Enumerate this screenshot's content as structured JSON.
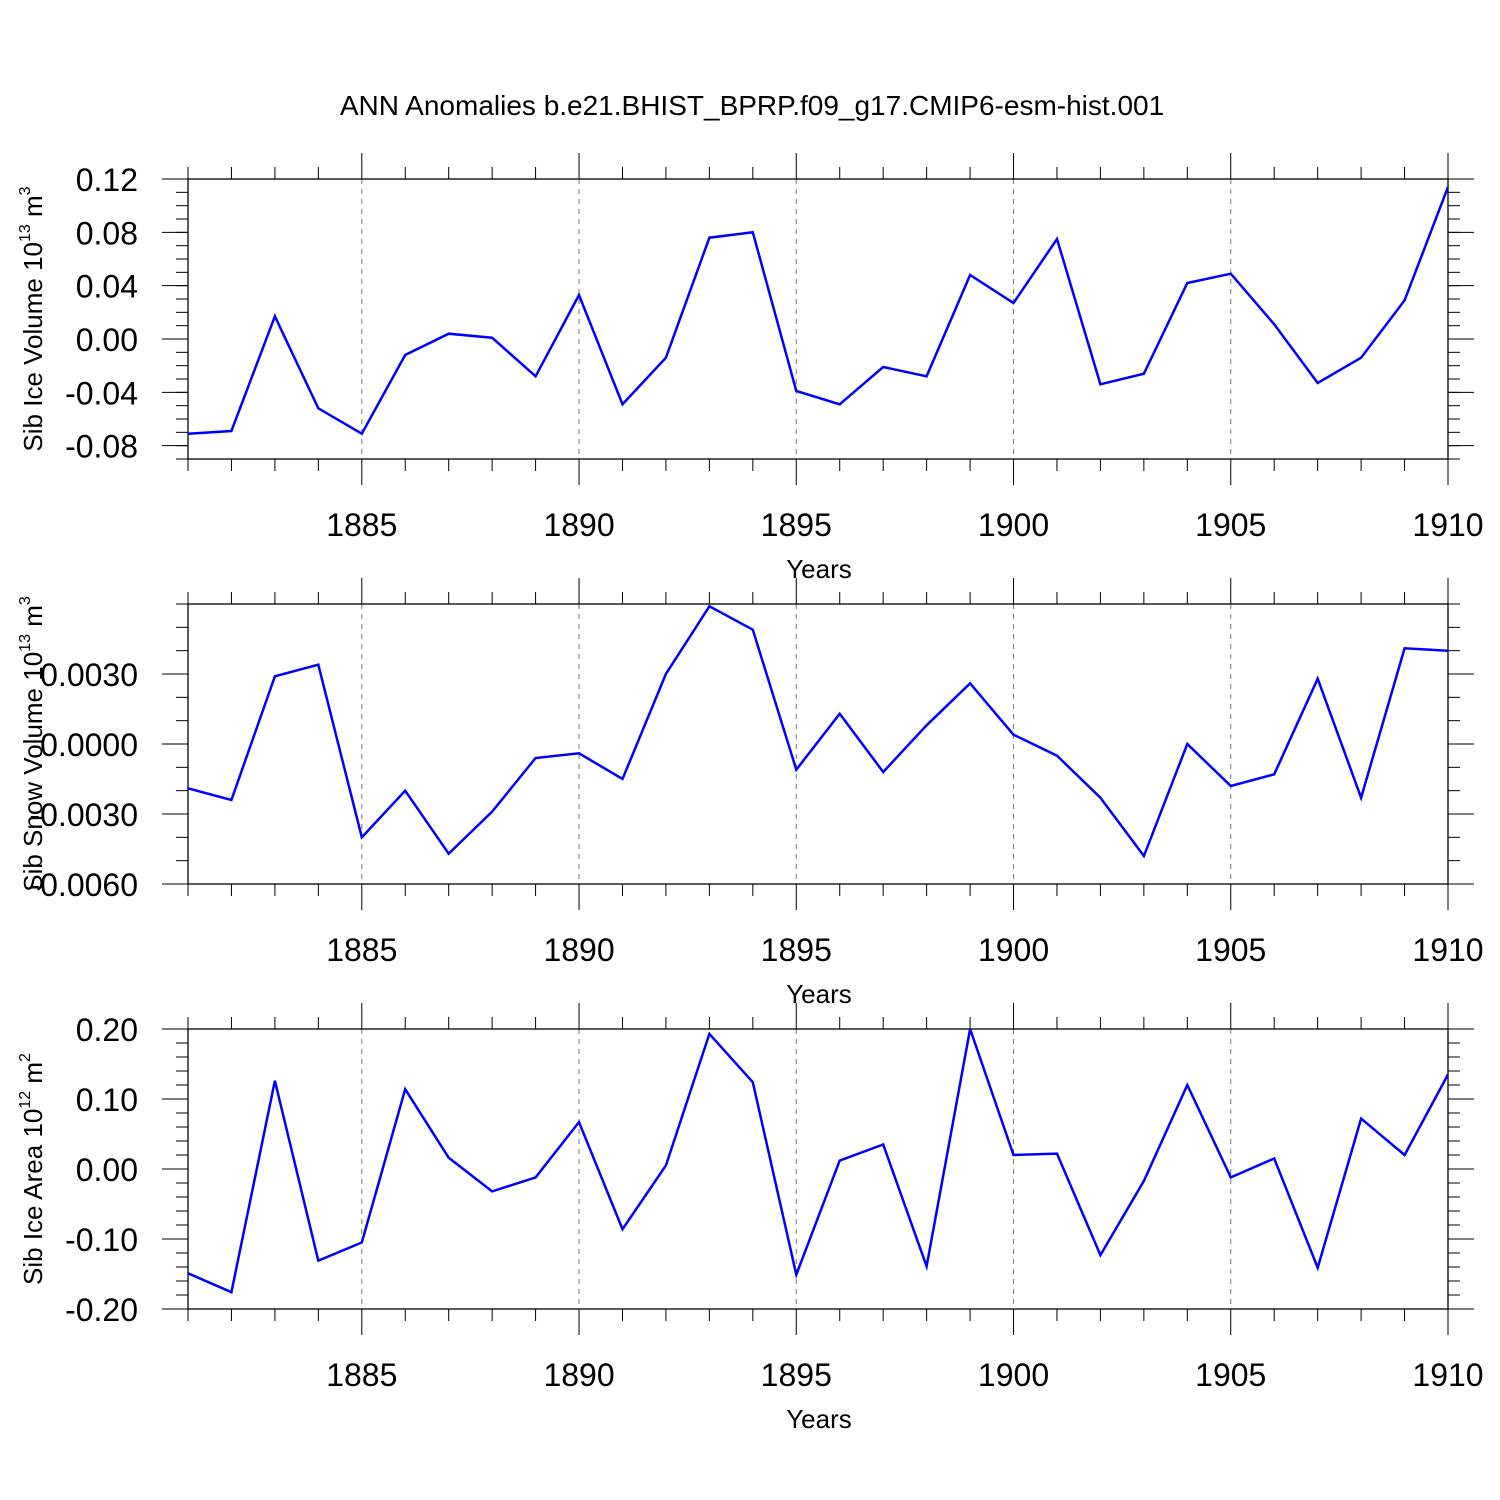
{
  "title": "ANN Anomalies b.e21.BHIST_BPRP.f09_g17.CMIP6-esm-hist.001",
  "line_color": "#0000ff",
  "chart_data": [
    {
      "type": "line",
      "title": "ANN Anomalies b.e21.BHIST_BPRP.f09_g17.CMIP6-esm-hist.001",
      "xlabel": "Years",
      "ylabel_base": "Sib Ice Volume 10",
      "ylabel_exp": "13",
      "ylabel_unit": " m",
      "ylabel_unit_exp": "3",
      "xlim": [
        1881,
        1910
      ],
      "ylim": [
        -0.09,
        0.12
      ],
      "xticks": [
        1885,
        1890,
        1895,
        1900,
        1905,
        1910
      ],
      "xtick_labels": [
        "1885",
        "1890",
        "1895",
        "1900",
        "1905",
        "1910"
      ],
      "yticks": [
        -0.08,
        -0.04,
        0.0,
        0.04,
        0.08,
        0.12
      ],
      "ytick_labels": [
        "-0.08",
        "-0.04",
        "0.00",
        "0.04",
        "0.08",
        "0.12"
      ],
      "yminor_step": 0.01,
      "grid": "vertical dashed at major x ticks",
      "x": [
        1881,
        1882,
        1883,
        1884,
        1885,
        1886,
        1887,
        1888,
        1889,
        1890,
        1891,
        1892,
        1893,
        1894,
        1895,
        1896,
        1897,
        1898,
        1899,
        1900,
        1901,
        1902,
        1903,
        1904,
        1905,
        1906,
        1907,
        1908,
        1909,
        1910
      ],
      "values": [
        -0.071,
        -0.069,
        0.017,
        -0.052,
        -0.071,
        -0.012,
        0.004,
        0.001,
        -0.028,
        0.033,
        -0.049,
        -0.014,
        0.076,
        0.08,
        -0.039,
        -0.049,
        -0.021,
        -0.028,
        0.048,
        0.027,
        0.075,
        -0.034,
        -0.026,
        0.042,
        0.049,
        0.011,
        -0.033,
        -0.014,
        0.029,
        0.114
      ]
    },
    {
      "type": "line",
      "xlabel": "Years",
      "ylabel_base": "Sib Snow Volume 10",
      "ylabel_exp": "13",
      "ylabel_unit": " m",
      "ylabel_unit_exp": "3",
      "xlim": [
        1881,
        1910
      ],
      "ylim": [
        -0.006,
        0.006
      ],
      "xticks": [
        1885,
        1890,
        1895,
        1900,
        1905,
        1910
      ],
      "xtick_labels": [
        "1885",
        "1890",
        "1895",
        "1900",
        "1905",
        "1910"
      ],
      "yticks": [
        -0.006,
        -0.003,
        0.0,
        0.003
      ],
      "ytick_labels": [
        "-0.0060",
        "-0.0030",
        "0.0000",
        "0.0030"
      ],
      "yminor_step": 0.001,
      "grid": "vertical dashed at major x ticks",
      "x": [
        1881,
        1882,
        1883,
        1884,
        1885,
        1886,
        1887,
        1888,
        1889,
        1890,
        1891,
        1892,
        1893,
        1894,
        1895,
        1896,
        1897,
        1898,
        1899,
        1900,
        1901,
        1902,
        1903,
        1904,
        1905,
        1906,
        1907,
        1908,
        1909,
        1910
      ],
      "values": [
        -0.0019,
        -0.0024,
        0.0029,
        0.0034,
        -0.004,
        -0.002,
        -0.0047,
        -0.0029,
        -0.0006,
        -0.0004,
        -0.0015,
        0.003,
        0.0059,
        0.0049,
        -0.0011,
        0.0013,
        -0.0012,
        0.0008,
        0.0026,
        0.0004,
        -0.0005,
        -0.0023,
        -0.0048,
        0.0,
        -0.0018,
        -0.0013,
        0.0028,
        -0.0023,
        0.0041,
        0.004
      ]
    },
    {
      "type": "line",
      "xlabel": "Years",
      "ylabel_base": "Sib Ice Area 10",
      "ylabel_exp": "12",
      "ylabel_unit": " m",
      "ylabel_unit_exp": "2",
      "xlim": [
        1881,
        1910
      ],
      "ylim": [
        -0.2,
        0.2
      ],
      "xticks": [
        1885,
        1890,
        1895,
        1900,
        1905,
        1910
      ],
      "xtick_labels": [
        "1885",
        "1890",
        "1895",
        "1900",
        "1905",
        "1910"
      ],
      "yticks": [
        -0.2,
        -0.1,
        0.0,
        0.1,
        0.2
      ],
      "ytick_labels": [
        "-0.20",
        "-0.10",
        "0.00",
        "0.10",
        "0.20"
      ],
      "yminor_step": 0.02,
      "grid": "vertical dashed at major x ticks",
      "x": [
        1881,
        1882,
        1883,
        1884,
        1885,
        1886,
        1887,
        1888,
        1889,
        1890,
        1891,
        1892,
        1893,
        1894,
        1895,
        1896,
        1897,
        1898,
        1899,
        1900,
        1901,
        1902,
        1903,
        1904,
        1905,
        1906,
        1907,
        1908,
        1909,
        1910
      ],
      "values": [
        -0.149,
        -0.176,
        0.126,
        -0.131,
        -0.105,
        0.114,
        0.016,
        -0.032,
        -0.012,
        0.067,
        -0.086,
        0.005,
        0.193,
        0.124,
        -0.151,
        0.012,
        0.035,
        -0.139,
        0.2,
        0.02,
        0.022,
        -0.123,
        -0.017,
        0.12,
        -0.012,
        0.015,
        -0.141,
        0.072,
        0.02,
        0.135
      ]
    }
  ]
}
